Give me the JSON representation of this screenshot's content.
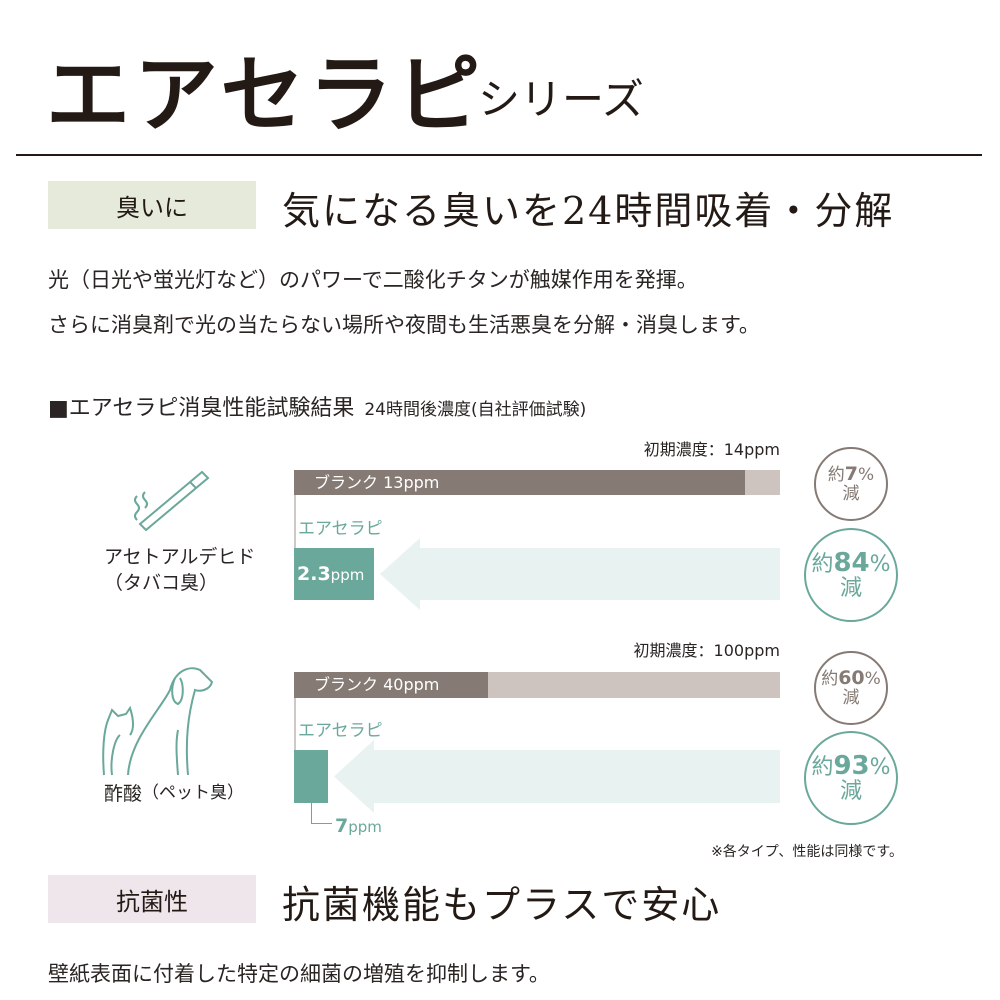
{
  "header": {
    "title": "エアセラピ",
    "subtitle": "シリーズ"
  },
  "section1": {
    "label": "臭いに",
    "heading": "気になる臭いを24時間吸着・分解",
    "paragraph": [
      "光（日光や蛍光灯など）のパワーで二酸化チタンが触媒作用を発揮。",
      "さらに消臭剤で光の当たらない場所や夜間も生活悪臭を分解・消臭します。"
    ]
  },
  "test": {
    "heading": "■エアセラピ消臭性能試験結果",
    "subheading": "24時間後濃度(自社評価試験)",
    "note": "※各タイプ、性能は同様です。"
  },
  "colors": {
    "blank": "#857a74",
    "blank_rest": "#cdc4c0",
    "airtherapy": "#6aa89b",
    "arrow": "#e8f2f1",
    "label1_bg": "#e6eadb",
    "label2_bg": "#efe6ec"
  },
  "chart_data": [
    {
      "type": "bar",
      "category": "アセトアルデヒド",
      "category_note": "（タバコ臭）",
      "icon": "cigarette-icon",
      "initial_label": "初期濃度：14ppm",
      "initial": 14,
      "blank": 13,
      "blank_label": "ブランク 13ppm",
      "airtherapy": 2.3,
      "airtherapy_name": "エアセラピ",
      "airtherapy_value_label": "2.3",
      "unit": "ppm",
      "blank_reduction": {
        "prefix": "約",
        "value": "7",
        "suffix": "%",
        "after": "減"
      },
      "airtherapy_reduction": {
        "prefix": "約",
        "value": "84",
        "suffix": "%",
        "after": "減"
      }
    },
    {
      "type": "bar",
      "category": "酢酸",
      "category_note": "（ペット臭）",
      "icon": "dog-cat-icon",
      "initial_label": "初期濃度：100ppm",
      "initial": 100,
      "blank": 40,
      "blank_label": "ブランク 40ppm",
      "airtherapy": 7,
      "airtherapy_name": "エアセラピ",
      "airtherapy_value_label": "7",
      "unit": "ppm",
      "blank_reduction": {
        "prefix": "約",
        "value": "60",
        "suffix": "%",
        "after": "減"
      },
      "airtherapy_reduction": {
        "prefix": "約",
        "value": "93",
        "suffix": "%",
        "after": "減"
      }
    }
  ],
  "section2": {
    "label": "抗菌性",
    "heading": "抗菌機能もプラスで安心",
    "paragraph": "壁紙表面に付着した特定の細菌の増殖を抑制します。"
  }
}
